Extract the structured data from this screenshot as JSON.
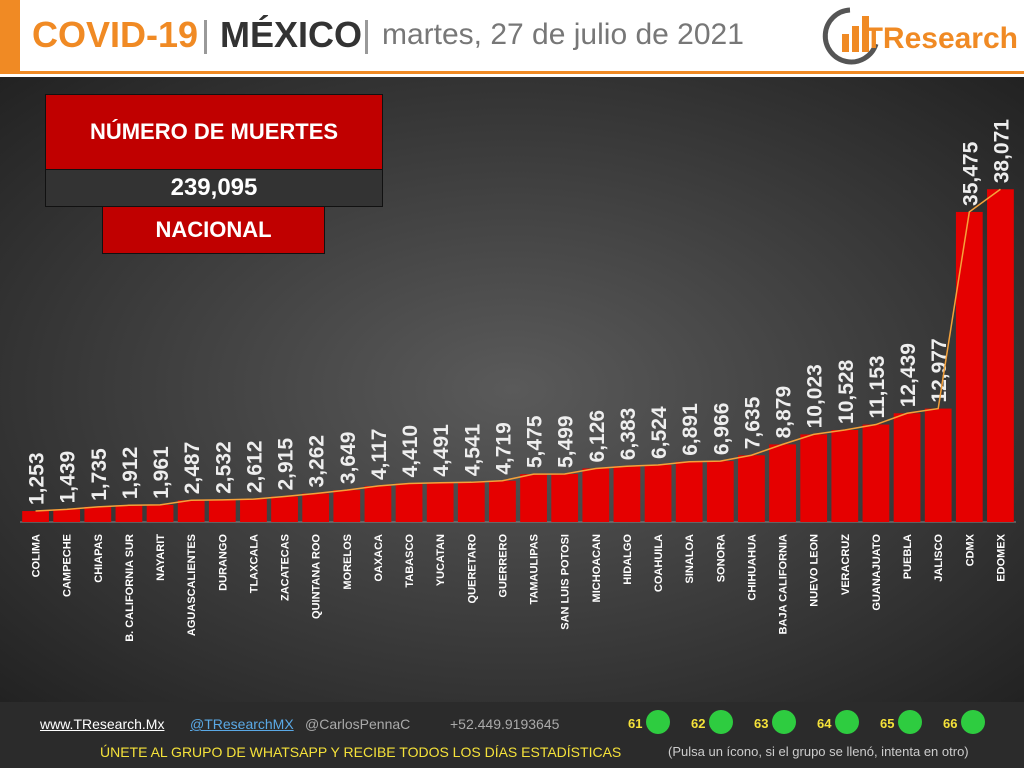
{
  "header": {
    "title": "COVID-19",
    "country": "MÉXICO",
    "date": "martes, 27 de julio de 2021",
    "logo": "TResearch"
  },
  "summary": {
    "heading": "NÚMERO DE MUERTES",
    "total": "239,095",
    "scope": "NACIONAL"
  },
  "chart_data": {
    "type": "bar",
    "categories": [
      "COLIMA",
      "CAMPECHE",
      "CHIAPAS",
      "B. CALIFORNIA SUR",
      "NAYARIT",
      "AGUASCALIENTES",
      "DURANGO",
      "TLAXCALA",
      "ZACATECAS",
      "QUINTANA ROO",
      "MORELOS",
      "OAXACA",
      "TABASCO",
      "YUCATAN",
      "QUERETARO",
      "GUERRERO",
      "TAMAULIPAS",
      "SAN LUIS POTOSI",
      "MICHOACAN",
      "HIDALGO",
      "COAHUILA",
      "SINALOA",
      "SONORA",
      "CHIHUAHUA",
      "BAJA CALIFORNIA",
      "NUEVO LEON",
      "VERACRUZ",
      "GUANAJUATO",
      "PUEBLA",
      "JALISCO",
      "CDMX",
      "EDOMEX"
    ],
    "values": [
      1253,
      1439,
      1735,
      1912,
      1961,
      2487,
      2532,
      2612,
      2915,
      3262,
      3649,
      4117,
      4410,
      4491,
      4541,
      4719,
      5475,
      5499,
      6126,
      6383,
      6524,
      6891,
      6966,
      7635,
      8879,
      10023,
      10528,
      11153,
      12439,
      12977,
      35475,
      38071
    ],
    "value_labels": [
      "1,253",
      "1,439",
      "1,735",
      "1,912",
      "1,961",
      "2,487",
      "2,532",
      "2,612",
      "2,915",
      "3,262",
      "3,649",
      "4,117",
      "4,410",
      "4,491",
      "4,541",
      "4,719",
      "5,475",
      "5,499",
      "6,126",
      "6,383",
      "6,524",
      "6,891",
      "6,966",
      "7,635",
      "8,879",
      "10,023",
      "10,528",
      "11,153",
      "12,439",
      "12,977",
      "35,475",
      "38,071"
    ],
    "color": "#e50000",
    "trend_color": "#f5a13a",
    "ylim": [
      0,
      50000
    ]
  },
  "footer": {
    "web": "www.TResearch.Mx",
    "twitter1": "@TResearchMX",
    "twitter2": "@CarlosPennaC",
    "phone": "+52.449.9193645",
    "groups": [
      "61",
      "62",
      "63",
      "64",
      "65",
      "66"
    ],
    "cta": "ÚNETE AL GRUPO DE WHATSAPP Y RECIBE TODOS LOS DÍAS ESTADÍSTICAS",
    "note": "(Pulsa un ícono, si el grupo se llenó, intenta en otro)"
  }
}
